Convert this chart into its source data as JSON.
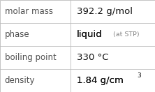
{
  "rows": [
    {
      "label": "molar mass",
      "value": "392.2 g/mol",
      "suffix": null,
      "superscript": null
    },
    {
      "label": "phase",
      "value": "liquid",
      "suffix": " (at STP)",
      "superscript": null
    },
    {
      "label": "boiling point",
      "value": "330 °C",
      "suffix": null,
      "superscript": null
    },
    {
      "label": "density",
      "value": "1.84 g/cm",
      "suffix": null,
      "superscript": "3"
    }
  ],
  "col_split": 0.455,
  "bg_color": "#ffffff",
  "border_color": "#bbbbbb",
  "label_color": "#505050",
  "value_color": "#111111",
  "suffix_color": "#888888",
  "label_fontsize": 8.5,
  "value_fontsize": 9.5,
  "suffix_fontsize": 6.8,
  "sup_fontsize": 6.5
}
